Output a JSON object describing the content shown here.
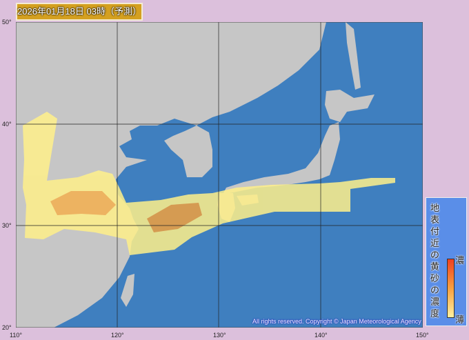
{
  "title": "2026年01月18日 03時（予測）",
  "lat_labels": [
    "50°",
    "40°",
    "30°",
    "20°"
  ],
  "lon_labels": [
    "110°",
    "120°",
    "130°",
    "140°",
    "150°"
  ],
  "legend": {
    "title": "地表付近の黄砂の濃度",
    "high": "濃",
    "low": "薄"
  },
  "copyright": "All rights reserved. Copyright © Japan Meteorological Agency",
  "colors": {
    "sea": "#3f7fbf",
    "land": "#c8c8c8",
    "dust_light": "#fff090",
    "dust_dense": "#f0a040",
    "background": "#dcc0dc"
  }
}
